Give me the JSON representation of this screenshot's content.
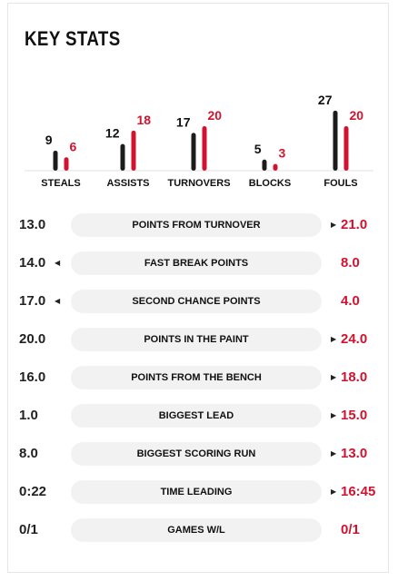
{
  "title": "KEY STATS",
  "colors": {
    "team_a": "#1c1c1c",
    "team_b": "#d2122e"
  },
  "chart_data": {
    "type": "bar",
    "categories": [
      "STEALS",
      "ASSISTS",
      "TURNOVERS",
      "BLOCKS",
      "FOULS"
    ],
    "series": [
      {
        "values": [
          9,
          12,
          17,
          5,
          27
        ]
      },
      {
        "values": [
          6,
          18,
          20,
          3,
          20
        ]
      }
    ]
  },
  "rows": [
    {
      "label": "POINTS FROM TURNOVER",
      "left": "13.0",
      "right": "21.0",
      "leader": "right"
    },
    {
      "label": "FAST BREAK POINTS",
      "left": "14.0",
      "right": "8.0",
      "leader": "left"
    },
    {
      "label": "SECOND CHANCE POINTS",
      "left": "17.0",
      "right": "4.0",
      "leader": "left"
    },
    {
      "label": "POINTS IN THE PAINT",
      "left": "20.0",
      "right": "24.0",
      "leader": "right"
    },
    {
      "label": "POINTS FROM THE BENCH",
      "left": "16.0",
      "right": "18.0",
      "leader": "right"
    },
    {
      "label": "BIGGEST LEAD",
      "left": "1.0",
      "right": "15.0",
      "leader": "right"
    },
    {
      "label": "BIGGEST SCORING RUN",
      "left": "8.0",
      "right": "13.0",
      "leader": "right"
    },
    {
      "label": "TIME LEADING",
      "left": "0:22",
      "right": "16:45",
      "leader": "right"
    },
    {
      "label": "GAMES W/L",
      "left": "0/1",
      "right": "0/1",
      "leader": "none"
    }
  ]
}
